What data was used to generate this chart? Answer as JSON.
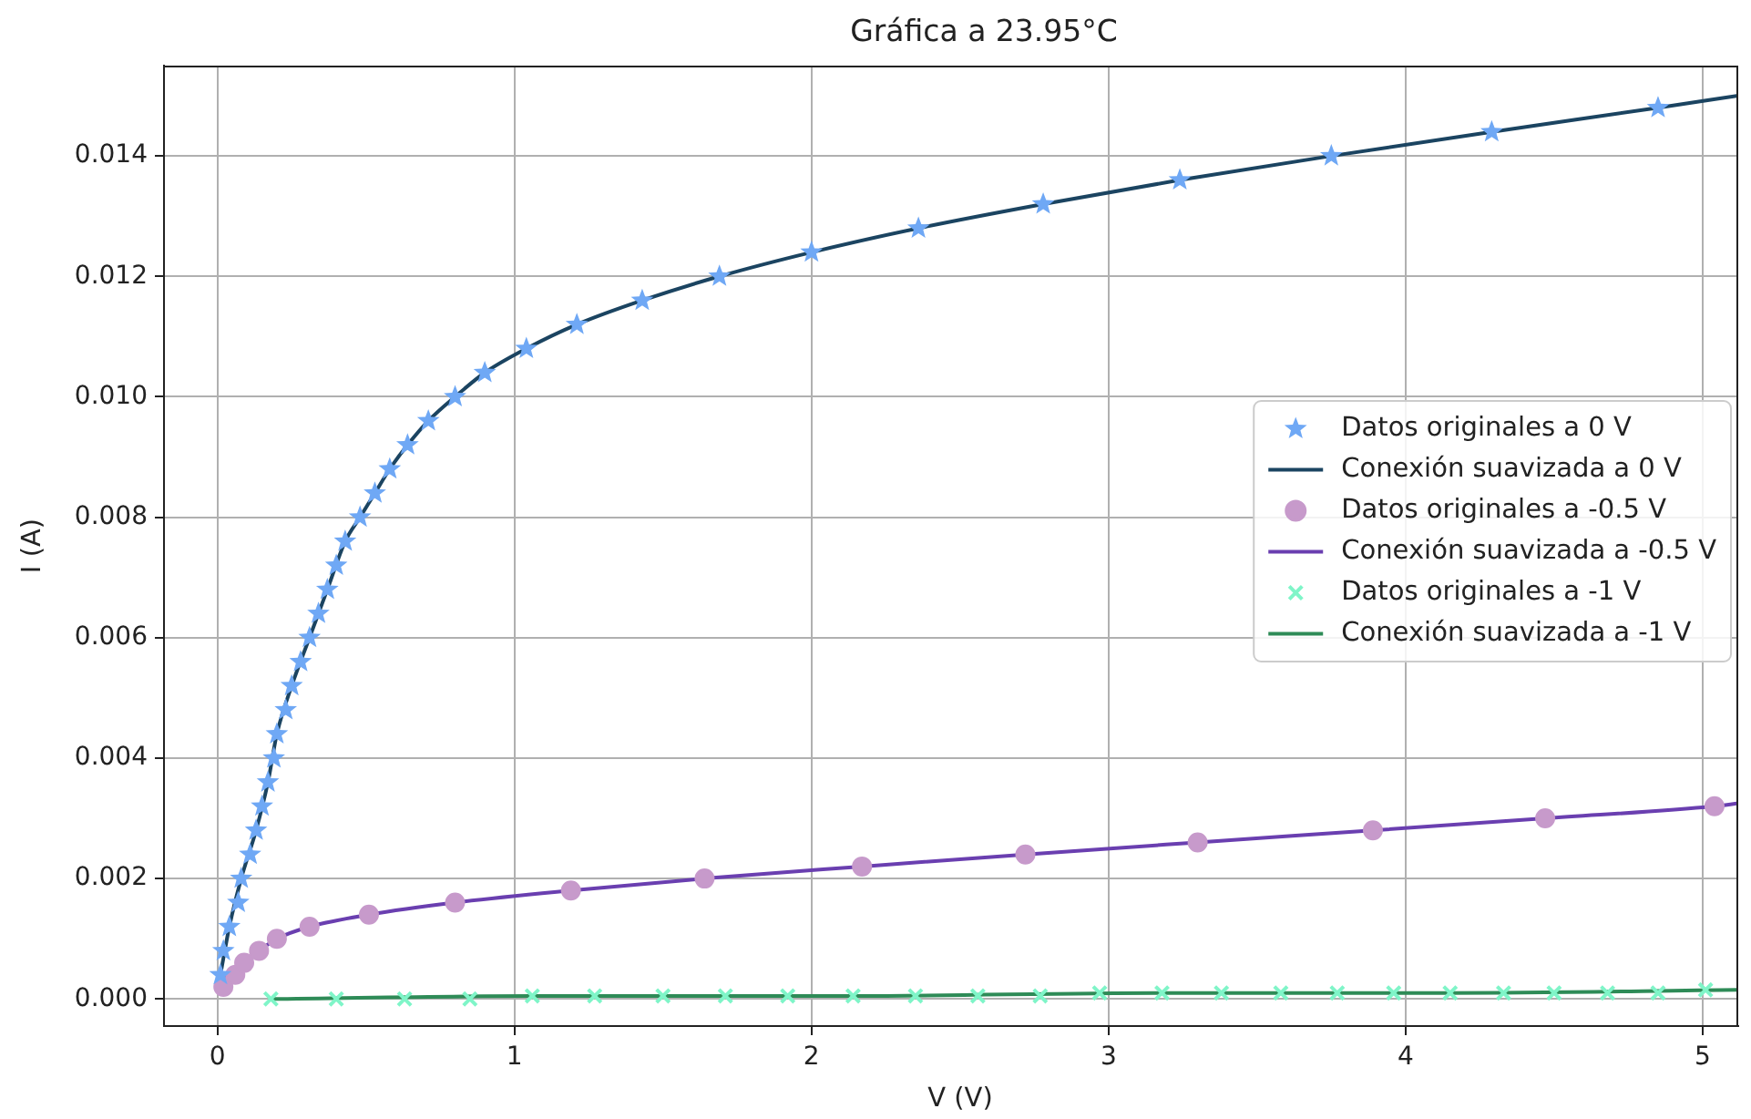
{
  "chart_data": {
    "type": "scatter",
    "title": "Gráfica a 23.95°C",
    "xlabel": "V (V)",
    "ylabel": "I (A)",
    "xlim": [
      -0.18,
      5.12
    ],
    "ylim": [
      -0.00045,
      0.0155
    ],
    "xticks": [
      0,
      1,
      2,
      3,
      4,
      5
    ],
    "yticks": [
      {
        "value": 0,
        "label": "0.000"
      },
      {
        "value": 0.002,
        "label": "0.002"
      },
      {
        "value": 0.004,
        "label": "0.004"
      },
      {
        "value": 0.006,
        "label": "0.006"
      },
      {
        "value": 0.008,
        "label": "0.008"
      },
      {
        "value": 0.01,
        "label": "0.010"
      },
      {
        "value": 0.012,
        "label": "0.012"
      },
      {
        "value": 0.014,
        "label": "0.014"
      }
    ],
    "grid": true,
    "legend": "right",
    "series": [
      {
        "name": "Datos originales a 0 V",
        "type": "scatter",
        "marker": "star",
        "color": "#6fa8f5",
        "x": [
          0.01,
          0.02,
          0.04,
          0.07,
          0.08,
          0.11,
          0.13,
          0.15,
          0.17,
          0.19,
          0.2,
          0.23,
          0.25,
          0.28,
          0.31,
          0.34,
          0.37,
          0.4,
          0.43,
          0.48,
          0.53,
          0.58,
          0.64,
          0.71,
          0.8,
          0.9,
          1.04,
          1.21,
          1.43,
          1.69,
          2.0,
          2.36,
          2.78,
          3.24,
          3.75,
          4.29,
          4.85
        ],
        "values": [
          0.0004,
          0.0008,
          0.0012,
          0.0016,
          0.002,
          0.0024,
          0.0028,
          0.0032,
          0.0036,
          0.004,
          0.0044,
          0.0048,
          0.0052,
          0.0056,
          0.006,
          0.0064,
          0.0068,
          0.0072,
          0.0076,
          0.008,
          0.0084,
          0.0088,
          0.0092,
          0.0096,
          0.01,
          0.0104,
          0.0108,
          0.0112,
          0.0116,
          0.012,
          0.0124,
          0.0128,
          0.0132,
          0.0136,
          0.014,
          0.0144,
          0.0148
        ]
      },
      {
        "name": "Conexión suavizada a 0 V",
        "type": "line",
        "color": "#1b4461",
        "x": [
          0.01,
          0.04,
          0.08,
          0.13,
          0.17,
          0.2,
          0.25,
          0.31,
          0.37,
          0.43,
          0.48,
          0.53,
          0.58,
          0.64,
          0.71,
          0.8,
          0.9,
          1.04,
          1.21,
          1.43,
          1.69,
          2.0,
          2.36,
          2.78,
          3.24,
          3.75,
          4.29,
          4.85,
          5.12
        ],
        "values": [
          0.0004,
          0.0012,
          0.002,
          0.0028,
          0.0036,
          0.0044,
          0.0052,
          0.006,
          0.0068,
          0.0076,
          0.008,
          0.0084,
          0.0088,
          0.0092,
          0.0096,
          0.01,
          0.0104,
          0.0108,
          0.0112,
          0.0116,
          0.012,
          0.0124,
          0.0128,
          0.0132,
          0.0136,
          0.014,
          0.0144,
          0.0148,
          0.015
        ]
      },
      {
        "name": "Datos originales a -0.5 V",
        "type": "scatter",
        "marker": "circle",
        "color": "#c79acb",
        "x": [
          0.02,
          0.06,
          0.09,
          0.14,
          0.2,
          0.31,
          0.51,
          0.8,
          1.19,
          1.64,
          2.17,
          2.72,
          3.3,
          3.89,
          4.47,
          5.04
        ],
        "values": [
          0.0002,
          0.0004,
          0.0006,
          0.0008,
          0.001,
          0.0012,
          0.0014,
          0.0016,
          0.0018,
          0.002,
          0.0022,
          0.0024,
          0.0026,
          0.0028,
          0.003,
          0.0032
        ]
      },
      {
        "name": "Conexión suavizada a -0.5 V",
        "type": "line",
        "color": "#6a3fb0",
        "x": [
          0.02,
          0.06,
          0.09,
          0.14,
          0.2,
          0.31,
          0.51,
          0.8,
          1.19,
          1.64,
          2.17,
          2.72,
          3.3,
          3.89,
          4.47,
          5.04,
          5.12
        ],
        "values": [
          0.0003,
          0.0005,
          0.0006,
          0.0008,
          0.001,
          0.0012,
          0.0014,
          0.0016,
          0.0018,
          0.002,
          0.0022,
          0.0024,
          0.0026,
          0.0028,
          0.003,
          0.0032,
          0.00325
        ]
      },
      {
        "name": "Datos originales a -1 V",
        "type": "scatter",
        "marker": "cross",
        "color": "#7ff5c8",
        "x": [
          0.18,
          0.4,
          0.63,
          0.85,
          1.06,
          1.27,
          1.5,
          1.71,
          1.92,
          2.14,
          2.35,
          2.56,
          2.77,
          2.97,
          3.18,
          3.38,
          3.58,
          3.77,
          3.96,
          4.15,
          4.33,
          4.5,
          4.68,
          4.85,
          5.01
        ],
        "values": [
          0,
          0,
          0,
          0,
          5e-05,
          5e-05,
          5e-05,
          5e-05,
          5e-05,
          5e-05,
          5e-05,
          5e-05,
          5e-05,
          0.0001,
          0.0001,
          0.0001,
          0.0001,
          0.0001,
          0.0001,
          0.0001,
          0.0001,
          0.0001,
          0.0001,
          0.0001,
          0.00015
        ]
      },
      {
        "name": "Conexión suavizada a -1 V",
        "type": "line",
        "color": "#2e8b57",
        "x": [
          0.18,
          1.06,
          2.14,
          3.18,
          4.15,
          5.12
        ],
        "values": [
          0,
          5e-05,
          5e-05,
          0.0001,
          0.0001,
          0.00015
        ]
      }
    ]
  }
}
